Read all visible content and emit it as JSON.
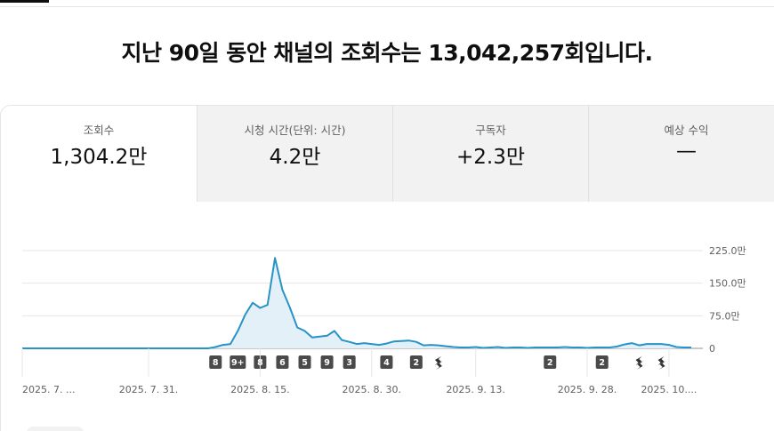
{
  "headline": "지난 90일 동안 채널의 조회수는 13,042,257회입니다.",
  "metrics": [
    {
      "label": "조회수",
      "value": "1,304.2만"
    },
    {
      "label": "시청 시간(단위: 시간)",
      "value": "4.2만"
    },
    {
      "label": "구독자",
      "value": "+2.3만"
    },
    {
      "label": "예상 수익",
      "value": "—"
    }
  ],
  "chart_data": {
    "type": "area",
    "title": "",
    "xlabel": "",
    "ylabel": "",
    "y_tick_labels": [
      "225.0만",
      "150.0만",
      "75.0만",
      "0"
    ],
    "y_ticks": [
      2250000,
      1500000,
      750000,
      0
    ],
    "ylim": [
      0,
      2250000
    ],
    "x_tick_labels": [
      "2025. 7. ...",
      "2025. 7. 31.",
      "2025. 8. 15.",
      "2025. 8. 30.",
      "2025. 9. 13.",
      "2025. 9. 28.",
      "2025. 10...."
    ],
    "x_tick_days": [
      0,
      17,
      32,
      47,
      61,
      76,
      87
    ],
    "grid": true,
    "color": "#2793c7",
    "series": [
      {
        "values": [
          0,
          0,
          0,
          0,
          0,
          0,
          0,
          0,
          0,
          0,
          0,
          0,
          0,
          0,
          0,
          0,
          0,
          0,
          0,
          0,
          0,
          0,
          0,
          0,
          0,
          0,
          30000,
          80000,
          100000,
          400000,
          780000,
          1050000,
          930000,
          1000000,
          2080000,
          1350000,
          940000,
          480000,
          400000,
          250000,
          270000,
          290000,
          400000,
          190000,
          150000,
          100000,
          120000,
          100000,
          80000,
          110000,
          160000,
          170000,
          180000,
          150000,
          70000,
          80000,
          70000,
          50000,
          30000,
          20000,
          20000,
          30000,
          10000,
          20000,
          30000,
          10000,
          20000,
          20000,
          10000,
          20000,
          20000,
          20000,
          20000,
          30000,
          20000,
          20000,
          10000,
          20000,
          20000,
          20000,
          40000,
          90000,
          120000,
          70000,
          100000,
          100000,
          100000,
          80000,
          30000,
          20000,
          20000
        ]
      }
    ],
    "badges": [
      {
        "day": 26,
        "text": "8"
      },
      {
        "day": 29,
        "text": "9+"
      },
      {
        "day": 32,
        "text": "8"
      },
      {
        "day": 35,
        "text": "6"
      },
      {
        "day": 38,
        "text": "5"
      },
      {
        "day": 41,
        "text": "9"
      },
      {
        "day": 44,
        "text": "3"
      },
      {
        "day": 49,
        "text": "4"
      },
      {
        "day": 53,
        "text": "2"
      },
      {
        "day": 56,
        "text": "shorts"
      },
      {
        "day": 71,
        "text": "2"
      },
      {
        "day": 78,
        "text": "2"
      },
      {
        "day": 83,
        "text": "shorts"
      },
      {
        "day": 86,
        "text": "shorts"
      }
    ]
  }
}
